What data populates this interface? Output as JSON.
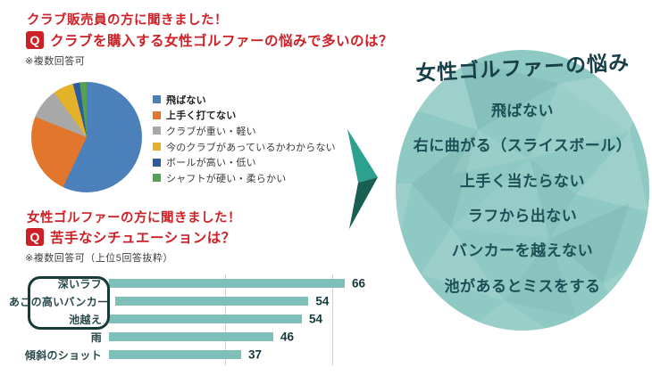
{
  "colors": {
    "accent_red": "#ce2127",
    "bar_fill": "#7fbfba",
    "grid": "#cfcfcf",
    "outline_box": "#163a36",
    "circle_fill": "#8fc9c3",
    "circle_text": "#1d4f57",
    "arrow_light": "#2da190",
    "arrow_dark": "#185e53"
  },
  "survey1": {
    "heading": "クラブ販売員の方に聞きました！",
    "q_label": "Q",
    "question": "クラブを購入する女性ゴルファーの悩みで多いのは？",
    "note": "※複数回答可"
  },
  "survey2": {
    "heading": "女性ゴルファーの方に聞きました！",
    "q_label": "Q",
    "question": "苦手なシチュエーションは？",
    "note": "※複数回答可（上位5回答抜粋）"
  },
  "chart_data": [
    {
      "type": "pie",
      "labels": [
        "飛ばない",
        "上手く打てない",
        "クラブが重い・軽い",
        "今のクラブがあっているかわからない",
        "ボールが高い・低い",
        "シャフトが硬い・柔らかい"
      ],
      "values": [
        57,
        24,
        9,
        6,
        2,
        2
      ],
      "colors": [
        "#4b80ba",
        "#e2762d",
        "#a8a8a8",
        "#e3b229",
        "#2e5a9e",
        "#55a054"
      ],
      "legend_bold": [
        true,
        true,
        false,
        false,
        false,
        false
      ],
      "legend_position": "right"
    },
    {
      "type": "bar",
      "orientation": "horizontal",
      "categories": [
        "深いラフ",
        "あごの高いバンカー",
        "池越え",
        "雨",
        "傾斜のショット"
      ],
      "values": [
        66,
        54,
        54,
        46,
        37
      ],
      "xlim": [
        0,
        66
      ],
      "gridlines": [
        30,
        60
      ],
      "grid": true,
      "highlighted_categories": [
        "深いラフ",
        "あごの高いバンカー",
        "池越え"
      ]
    }
  ],
  "result": {
    "title": "女性ゴルファーの悩み",
    "items": [
      "飛ばない",
      "右に曲がる（スライスボール）",
      "上手く当たらない",
      "ラフから出ない",
      "バンカーを越えない",
      "池があるとミスをする"
    ]
  }
}
